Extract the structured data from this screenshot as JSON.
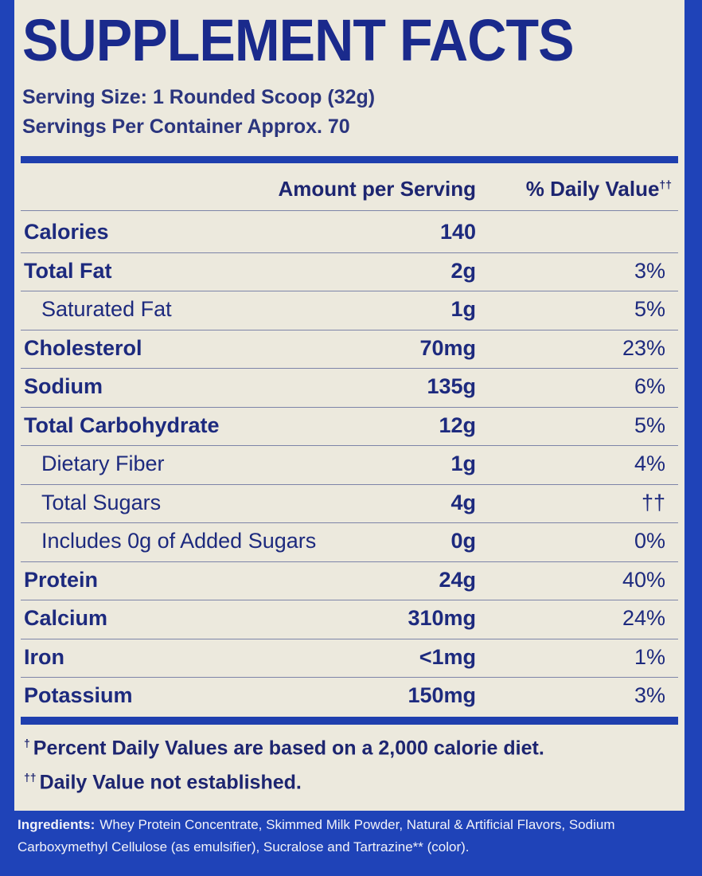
{
  "title": "SUPPLEMENT FACTS",
  "serving_size": "Serving Size: 1 Rounded Scoop (32g)",
  "servings_per_container": "Servings Per Container Approx. 70",
  "table": {
    "headers": {
      "amount": "Amount per Serving",
      "daily_value": {
        "text": "% Daily Value",
        "mark": "††"
      }
    },
    "rows": [
      [
        "Calories",
        "140"
      ],
      [
        "Total Fat",
        "2g",
        "3%"
      ],
      [
        "Saturated Fat",
        "1g",
        "5%"
      ],
      [
        "Cholesterol",
        "70mg",
        "23%"
      ],
      [
        "Sodium",
        "135g",
        "6%"
      ],
      [
        "Total Carbohydrate",
        "12g",
        "5%"
      ],
      [
        "Dietary Fiber",
        "1g",
        "4%"
      ],
      [
        "Total Sugars",
        "4g",
        "††"
      ],
      [
        "Includes 0g of Added Sugars",
        "0g",
        "0%"
      ],
      [
        "Protein",
        "24g",
        "40%"
      ],
      [
        "Calcium",
        "310mg",
        "24%"
      ],
      [
        "Iron",
        "<1mg",
        "1%"
      ],
      [
        "Potassium",
        "150mg",
        "3%"
      ]
    ]
  },
  "footnotes": [
    {
      "mark": "†",
      "text": "Percent Daily Values are based on a 2,000 calorie diet."
    },
    {
      "mark": "††",
      "text": "Daily Value not established."
    }
  ],
  "ingredients": {
    "label": "Ingredients:",
    "text": "Whey Protein Concentrate, Skimmed Milk Powder, Natural & Artificial Flavors, Sodium Carboxymethyl Cellulose (as emulsifier), Sucralose and Tartrazine** (color)."
  }
}
